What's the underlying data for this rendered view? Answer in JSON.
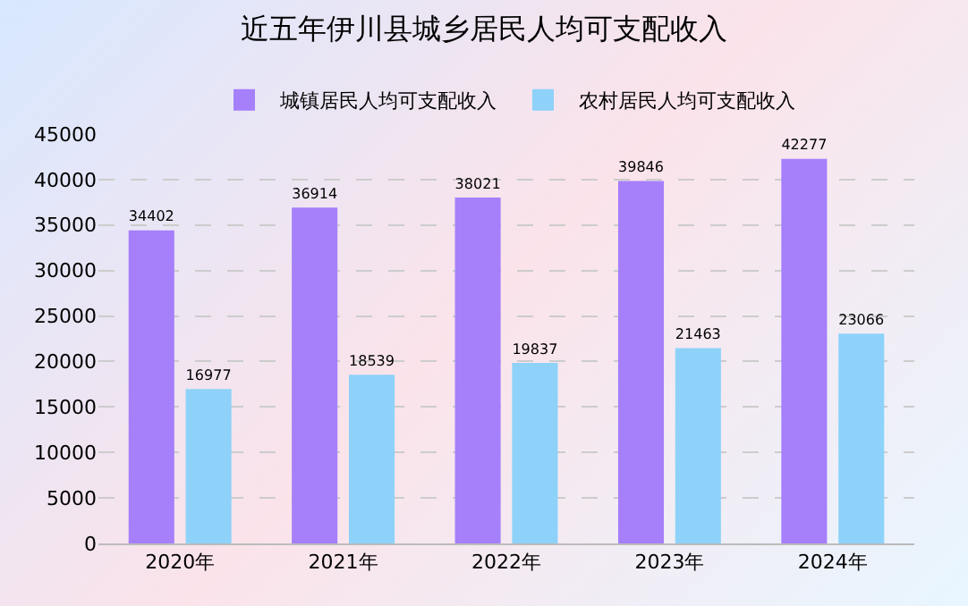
{
  "chart_data": {
    "type": "bar",
    "title": "近五年伊川县城乡居民人均可支配收入",
    "categories": [
      "2020年",
      "2021年",
      "2022年",
      "2023年",
      "2024年"
    ],
    "series": [
      {
        "name": "城镇居民人均可支配收入",
        "color": "#a67ffa",
        "values": [
          34402,
          36914,
          38021,
          39846,
          42277
        ]
      },
      {
        "name": "农村居民人均可支配收入",
        "color": "#8ed2fa",
        "values": [
          16977,
          18539,
          19837,
          21463,
          23066
        ]
      }
    ],
    "ylim": [
      0,
      45000
    ],
    "yticks": [
      0,
      5000,
      10000,
      15000,
      20000,
      25000,
      30000,
      35000,
      40000,
      45000
    ],
    "grid": "y",
    "legend": "top",
    "data_labels": true
  }
}
